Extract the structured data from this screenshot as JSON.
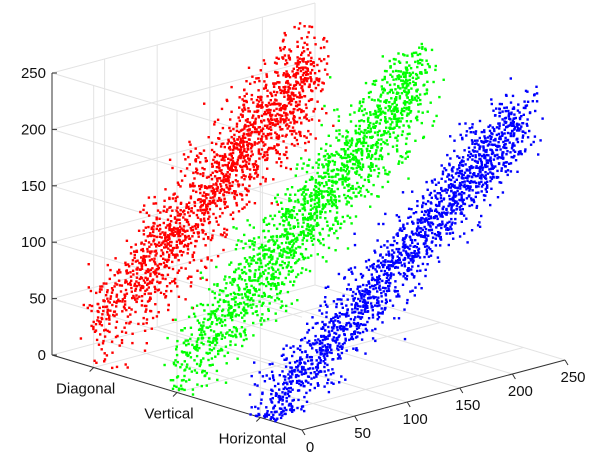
{
  "chart_data": {
    "type": "scatter",
    "projection": "3d",
    "grid": true,
    "title": "",
    "xlabel": "",
    "ylabel": "",
    "zlabel": "",
    "x_axis": {
      "ticks": [
        "0",
        "50",
        "100",
        "150",
        "200",
        "250"
      ],
      "range": [
        0,
        250
      ]
    },
    "y_axis": {
      "categories": [
        "Horizontal",
        "Vertical",
        "Diagonal"
      ]
    },
    "z_axis": {
      "ticks": [
        "0",
        "50",
        "100",
        "150",
        "200",
        "250"
      ],
      "range": [
        0,
        250
      ]
    },
    "series": [
      {
        "category": "Diagonal",
        "color": "#ff0000",
        "x_range": [
          0,
          210
        ],
        "z_range": [
          30,
          215
        ],
        "spread": 22,
        "approx_points": 1800
      },
      {
        "category": "Vertical",
        "color": "#00ff00",
        "x_range": [
          0,
          235
        ],
        "z_range": [
          15,
          225
        ],
        "spread": 20,
        "approx_points": 1800
      },
      {
        "category": "Horizontal",
        "color": "#0000ff",
        "x_range": [
          0,
          250
        ],
        "z_range": [
          0,
          205
        ],
        "spread": 16,
        "approx_points": 1800
      }
    ]
  }
}
